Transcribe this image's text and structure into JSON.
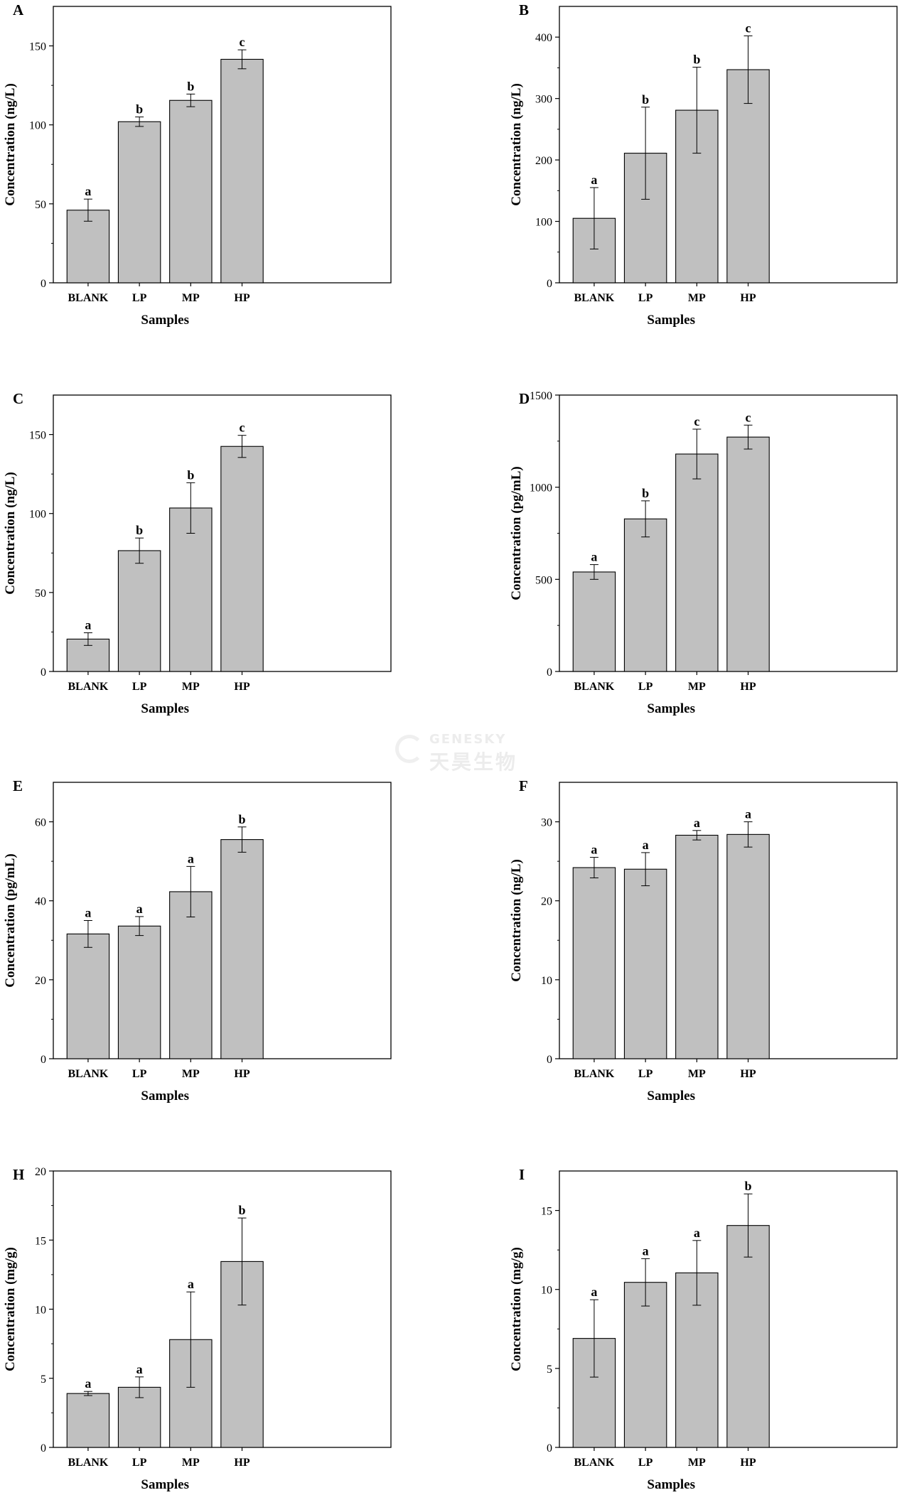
{
  "watermark": {
    "en": "GENESKY",
    "cn": "天昊生物"
  },
  "colors": {
    "bar": "#c0c0c0",
    "stroke": "#000000"
  },
  "chart_data": [
    {
      "panel": "A",
      "type": "bar",
      "categories": [
        "BLANK",
        "LP",
        "MP",
        "HP"
      ],
      "values": [
        46,
        102,
        115.5,
        141.5
      ],
      "errors": [
        7,
        3,
        4,
        6
      ],
      "significance": [
        "a",
        "b",
        "b",
        "c"
      ],
      "xlabel": "Samples",
      "ylabel": "Concentration (ng/L)",
      "ylim": [
        0,
        175
      ],
      "yticks": [
        0,
        50,
        100,
        150
      ]
    },
    {
      "panel": "B",
      "type": "bar",
      "categories": [
        "BLANK",
        "LP",
        "MP",
        "HP"
      ],
      "values": [
        105,
        211,
        281,
        347
      ],
      "errors": [
        50,
        75,
        70,
        55
      ],
      "significance": [
        "a",
        "b",
        "b",
        "c"
      ],
      "xlabel": "Samples",
      "ylabel": "Concentration (ng/L)",
      "ylim": [
        0,
        450
      ],
      "yticks": [
        0,
        100,
        200,
        300,
        400
      ]
    },
    {
      "panel": "C",
      "type": "bar",
      "categories": [
        "BLANK",
        "LP",
        "MP",
        "HP"
      ],
      "values": [
        20.5,
        76.5,
        103.5,
        142.5
      ],
      "errors": [
        4,
        8,
        16,
        7
      ],
      "significance": [
        "a",
        "b",
        "b",
        "c"
      ],
      "xlabel": "Samples",
      "ylabel": "Concentration (ng/L)",
      "ylim": [
        0,
        175
      ],
      "yticks": [
        0,
        50,
        100,
        150
      ]
    },
    {
      "panel": "D",
      "type": "bar",
      "categories": [
        "BLANK",
        "LP",
        "MP",
        "HP"
      ],
      "values": [
        540,
        828,
        1180,
        1272
      ],
      "errors": [
        40,
        98,
        135,
        65
      ],
      "significance": [
        "a",
        "b",
        "c",
        "c"
      ],
      "xlabel": "Samples",
      "ylabel": "Concentration (pg/mL)",
      "ylim": [
        0,
        1500
      ],
      "yticks": [
        0,
        500,
        1000,
        1500
      ]
    },
    {
      "panel": "E",
      "type": "bar",
      "categories": [
        "BLANK",
        "LP",
        "MP",
        "HP"
      ],
      "values": [
        31.6,
        33.6,
        42.3,
        55.5
      ],
      "errors": [
        3.4,
        2.4,
        6.4,
        3.2
      ],
      "significance": [
        "a",
        "a",
        "a",
        "b"
      ],
      "xlabel": "Samples",
      "ylabel": "Concentration (pg/mL)",
      "ylim": [
        0,
        70
      ],
      "yticks": [
        0,
        20,
        40,
        60
      ]
    },
    {
      "panel": "F",
      "type": "bar",
      "categories": [
        "BLANK",
        "LP",
        "MP",
        "HP"
      ],
      "values": [
        24.2,
        24.0,
        28.3,
        28.4
      ],
      "errors": [
        1.3,
        2.1,
        0.6,
        1.6
      ],
      "significance": [
        "a",
        "a",
        "a",
        "a"
      ],
      "xlabel": "Samples",
      "ylabel": "Concentration (ng/L)",
      "ylim": [
        0,
        35
      ],
      "yticks": [
        0,
        10,
        20,
        30
      ]
    },
    {
      "panel": "H",
      "type": "bar",
      "categories": [
        "BLANK",
        "LP",
        "MP",
        "HP"
      ],
      "values": [
        3.9,
        4.35,
        7.8,
        13.45
      ],
      "errors": [
        0.15,
        0.75,
        3.45,
        3.15
      ],
      "significance": [
        "a",
        "a",
        "a",
        "b"
      ],
      "xlabel": "Samples",
      "ylabel": "Concentration (mg/g)",
      "ylim": [
        0,
        20
      ],
      "yticks": [
        0,
        5,
        10,
        15,
        20
      ]
    },
    {
      "panel": "I",
      "type": "bar",
      "categories": [
        "BLANK",
        "LP",
        "MP",
        "HP"
      ],
      "values": [
        6.9,
        10.45,
        11.05,
        14.05
      ],
      "errors": [
        2.45,
        1.5,
        2.05,
        2.0
      ],
      "significance": [
        "a",
        "a",
        "a",
        "b"
      ],
      "xlabel": "Samples",
      "ylabel": "Concentration (mg/g)",
      "ylim": [
        0,
        17.5
      ],
      "yticks": [
        0,
        5,
        10,
        15
      ]
    }
  ]
}
